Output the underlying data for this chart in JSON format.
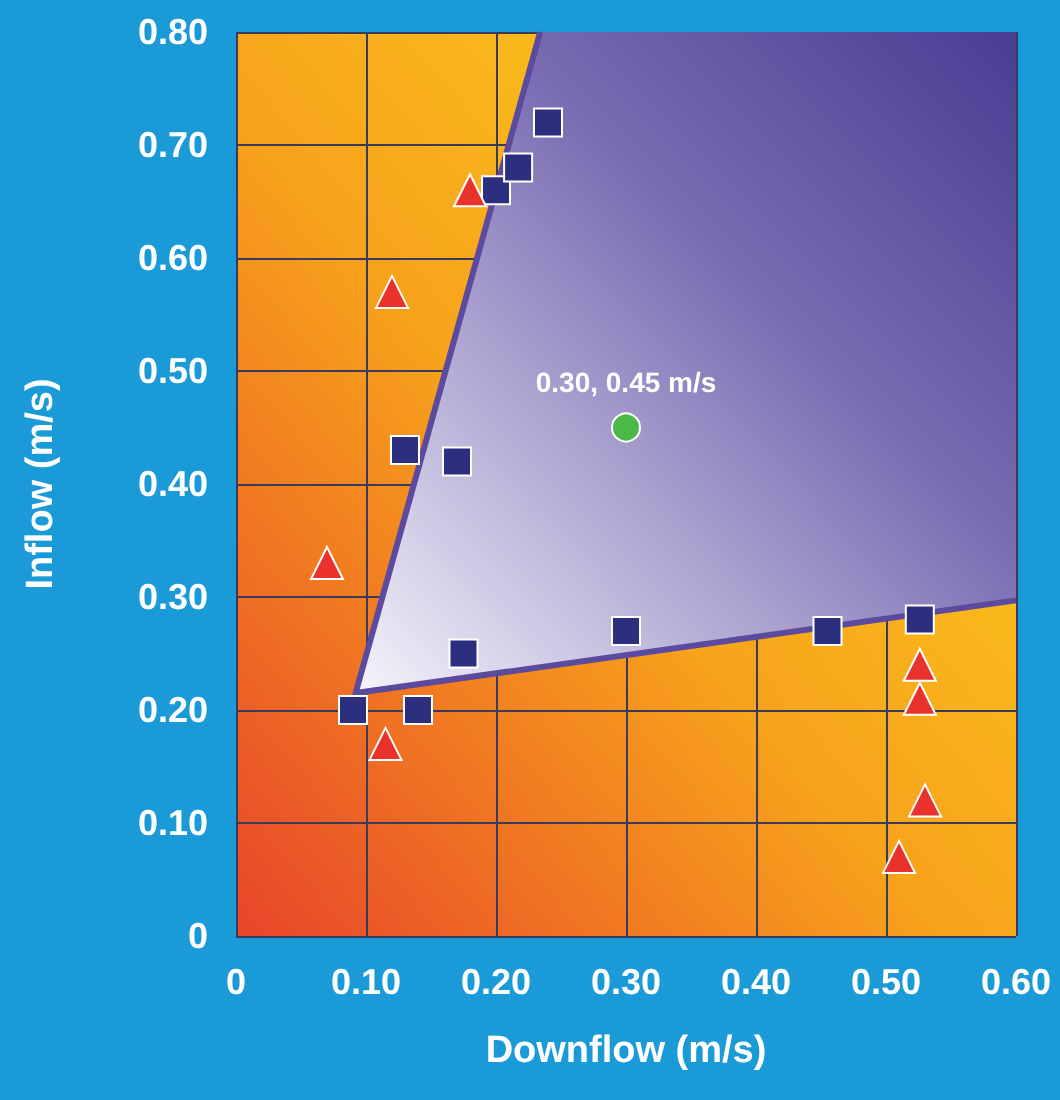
{
  "chart_data": {
    "type": "scatter",
    "xlabel": "Downflow (m/s)",
    "ylabel": "Inflow (m/s)",
    "xlim": [
      0,
      0.6
    ],
    "ylim": [
      0,
      0.8
    ],
    "xticks": [
      0,
      {
        "value": 0.1,
        "label": "0.10"
      },
      {
        "value": 0.2,
        "label": "0.20"
      },
      {
        "value": 0.3,
        "label": "0.30"
      },
      {
        "value": 0.4,
        "label": "0.40"
      },
      {
        "value": 0.5,
        "label": "0.50"
      },
      {
        "value": 0.6,
        "label": "0.60"
      }
    ],
    "yticks": [
      0,
      {
        "value": 0.1,
        "label": "0.10"
      },
      {
        "value": 0.2,
        "label": "0.20"
      },
      {
        "value": 0.3,
        "label": "0.30"
      },
      {
        "value": 0.4,
        "label": "0.40"
      },
      {
        "value": 0.5,
        "label": "0.50"
      },
      {
        "value": 0.6,
        "label": "0.60"
      },
      {
        "value": 0.7,
        "label": "0.70"
      },
      {
        "value": 0.8,
        "label": "0.80"
      }
    ],
    "grid": true,
    "series": [
      {
        "type": "line",
        "color": "#5b4a9e",
        "marker": "none",
        "x": [
          0.234,
          0.092,
          0.6
        ],
        "values": [
          0.8,
          0.215,
          0.297
        ]
      },
      {
        "color": "#2b2f7e",
        "marker": "square",
        "x": [
          0.09,
          0.14,
          0.175,
          0.13,
          0.17,
          0.2,
          0.217,
          0.24,
          0.3,
          0.455,
          0.526
        ],
        "values": [
          0.2,
          0.2,
          0.25,
          0.43,
          0.42,
          0.66,
          0.68,
          0.72,
          0.27,
          0.27,
          0.28
        ]
      },
      {
        "color": "#e8322b",
        "marker": "triangle",
        "x": [
          0.07,
          0.12,
          0.18,
          0.115,
          0.526,
          0.526,
          0.53,
          0.51
        ],
        "values": [
          0.33,
          0.57,
          0.66,
          0.17,
          0.24,
          0.21,
          0.12,
          0.07
        ]
      },
      {
        "color": "#4bb848",
        "marker": "circle",
        "x": [
          0.3
        ],
        "values": [
          0.45
        ]
      }
    ],
    "annotations": [
      {
        "text": "0.30, 0.45 m/s",
        "x": 0.3,
        "y": 0.45
      }
    ]
  }
}
